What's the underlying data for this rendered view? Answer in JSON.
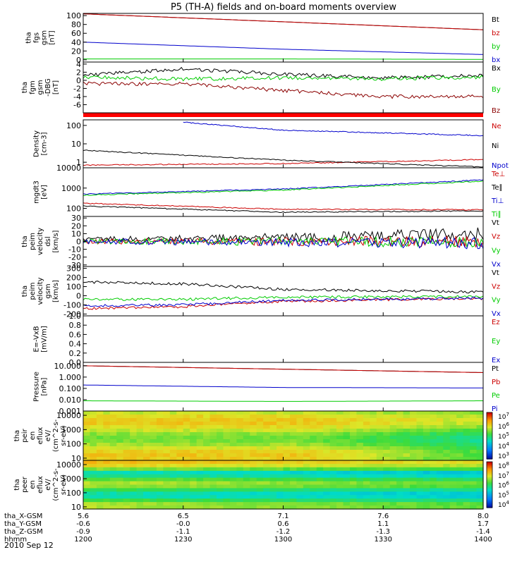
{
  "title": "P5 (TH-A) fields and on-board moments overview",
  "date": "2010 Sep 12",
  "colors": {
    "black": "#000000",
    "red": "#cc0000",
    "green": "#00cc00",
    "blue": "#0000cc",
    "darkred": "#8b0000"
  },
  "ephemeris": {
    "rows": [
      {
        "label": "tha_X-GSM",
        "values": [
          "5.6",
          "6.5",
          "7.1",
          "7.6",
          "8.0"
        ]
      },
      {
        "label": "tha_Y-GSM",
        "values": [
          "-0.6",
          "-0.0",
          "0.6",
          "1.1",
          "1.7"
        ]
      },
      {
        "label": "tha_Z-GSM",
        "values": [
          "-0.9",
          "-1.1",
          "-1.2",
          "-1.3",
          "-1.4"
        ]
      },
      {
        "label": "hhmm",
        "values": [
          "1200",
          "1230",
          "1300",
          "1330",
          "1400"
        ]
      }
    ]
  },
  "chart_data": [
    {
      "type": "line",
      "id": "fgs",
      "ylabel_lines": [
        "tha",
        "fgs",
        "gsm",
        "[nT]"
      ],
      "ylim": [
        -5,
        105
      ],
      "yticks": [
        "100",
        "80",
        "60",
        "40",
        "20",
        "0"
      ],
      "time_range": [
        "1200",
        "1400"
      ],
      "series": [
        {
          "name": "Bt",
          "color": "#000000",
          "x": [
            "1200",
            "1300",
            "1400"
          ],
          "values": [
            104,
            86,
            68
          ]
        },
        {
          "name": "bz",
          "color": "#cc0000",
          "x": [
            "1200",
            "1300",
            "1400"
          ],
          "values": [
            104,
            86,
            68
          ]
        },
        {
          "name": "by",
          "color": "#00cc00",
          "x": [
            "1200",
            "1300",
            "1400"
          ],
          "values": [
            2,
            2,
            1
          ]
        },
        {
          "name": "bx",
          "color": "#0000cc",
          "x": [
            "1200",
            "1300",
            "1400"
          ],
          "values": [
            40,
            24,
            12
          ]
        }
      ]
    },
    {
      "type": "line",
      "id": "fgm-dbg",
      "ylabel_lines": [
        "tha",
        "fgm",
        "gsm",
        "-DBG",
        "[nT]"
      ],
      "ylim": [
        -8,
        4.5
      ],
      "yticks": [
        "4",
        "2",
        "0",
        "-2",
        "-4",
        "-6"
      ],
      "series": [
        {
          "name": "Bx",
          "color": "#000000",
          "x": [
            "1200",
            "1230",
            "1300",
            "1330",
            "1400"
          ],
          "values": [
            1.2,
            2.8,
            1.5,
            0.6,
            1.2
          ]
        },
        {
          "name": "By",
          "color": "#00cc00",
          "x": [
            "1200",
            "1230",
            "1300",
            "1330",
            "1400"
          ],
          "values": [
            0.8,
            0.3,
            0.6,
            0.4,
            0.8
          ]
        },
        {
          "name": "Bz",
          "color": "#8b0000",
          "x": [
            "1200",
            "1230",
            "1300",
            "1330",
            "1400"
          ],
          "values": [
            -0.8,
            -0.9,
            -2.5,
            -4,
            -4
          ]
        }
      ]
    },
    {
      "type": "line",
      "id": "density",
      "scale": "log",
      "ylabel_lines": [
        "Density",
        "[cm-3]"
      ],
      "ylim": [
        0.5,
        200
      ],
      "yticks": [
        "100",
        "10",
        "1"
      ],
      "series": [
        {
          "name": "Ne",
          "color": "#cc0000",
          "x": [
            "1200",
            "1300",
            "1400"
          ],
          "values": [
            0.7,
            0.85,
            1.4
          ]
        },
        {
          "name": "Ni",
          "color": "#000000",
          "x": [
            "1200",
            "1300",
            "1400"
          ],
          "values": [
            4.5,
            1.3,
            0.55
          ]
        },
        {
          "name": "Npot",
          "color": "#0000cc",
          "x": [
            "1230",
            "1300",
            "1400"
          ],
          "values": [
            150,
            55,
            28
          ]
        }
      ]
    },
    {
      "type": "line",
      "id": "temperature",
      "scale": "log",
      "ylabel_lines": [
        "mgdt3",
        "[eV]"
      ],
      "ylim": [
        40,
        10000
      ],
      "yticks": [
        "10000",
        "1000",
        "100"
      ],
      "series": [
        {
          "name": "Te⊥",
          "color": "#cc0000",
          "x": [
            "1200",
            "1300",
            "1400"
          ],
          "values": [
            180,
            90,
            85
          ]
        },
        {
          "name": "Te∥",
          "color": "#000000",
          "x": [
            "1200",
            "1300",
            "1400"
          ],
          "values": [
            130,
            65,
            75
          ]
        },
        {
          "name": "Ti⊥",
          "color": "#0000cc",
          "x": [
            "1200",
            "1300",
            "1400"
          ],
          "values": [
            500,
            900,
            2500
          ]
        },
        {
          "name": "Ti∥",
          "color": "#00cc00",
          "x": [
            "1200",
            "1300",
            "1400"
          ],
          "values": [
            450,
            800,
            2200
          ]
        }
      ]
    },
    {
      "type": "line",
      "id": "peim-dsl",
      "ylabel_lines": [
        "tha",
        "peim",
        "velocity",
        "dsl",
        "[km/s]"
      ],
      "ylim": [
        -32,
        32
      ],
      "yticks": [
        "30",
        "20",
        "10",
        "0",
        "-10",
        "-20",
        "-30"
      ],
      "series": [
        {
          "name": "Vt",
          "color": "#000000",
          "x": [
            "1200",
            "1300",
            "1400"
          ],
          "values": [
            3,
            5,
            10
          ]
        },
        {
          "name": "Vz",
          "color": "#cc0000",
          "x": [
            "1200",
            "1300",
            "1400"
          ],
          "values": [
            0,
            0,
            0
          ]
        },
        {
          "name": "Vy",
          "color": "#00cc00",
          "x": [
            "1200",
            "1300",
            "1400"
          ],
          "values": [
            0,
            0,
            0
          ]
        },
        {
          "name": "Vx",
          "color": "#0000cc",
          "x": [
            "1200",
            "1300",
            "1400"
          ],
          "values": [
            0,
            -1,
            -2
          ]
        }
      ]
    },
    {
      "type": "line",
      "id": "peim-gsm",
      "ylabel_lines": [
        "tha",
        "peim",
        "velocity",
        "gsm",
        "[km/s]"
      ],
      "ylim": [
        -220,
        320
      ],
      "yticks": [
        "300",
        "200",
        "100",
        "0",
        "-100",
        "-200"
      ],
      "series": [
        {
          "name": "Vt",
          "color": "#000000",
          "x": [
            "1200",
            "1230",
            "1300",
            "1400"
          ],
          "values": [
            150,
            130,
            70,
            40
          ]
        },
        {
          "name": "Vz",
          "color": "#cc0000",
          "x": [
            "1200",
            "1230",
            "1300",
            "1400"
          ],
          "values": [
            -140,
            -120,
            -60,
            -30
          ]
        },
        {
          "name": "Vy",
          "color": "#00cc00",
          "x": [
            "1200",
            "1230",
            "1300",
            "1400"
          ],
          "values": [
            -40,
            -40,
            -15,
            -10
          ]
        },
        {
          "name": "Vx",
          "color": "#0000cc",
          "x": [
            "1200",
            "1230",
            "1300",
            "1400"
          ],
          "values": [
            -110,
            -100,
            -50,
            -25
          ]
        }
      ]
    },
    {
      "type": "line",
      "id": "efield",
      "ylabel_lines": [
        "E=-VxB",
        "[mV/m]"
      ],
      "ylim": [
        0,
        1
      ],
      "yticks": [
        "1.0",
        "0.8",
        "0.6",
        "0.4",
        "0.2",
        "0.0"
      ],
      "series": [
        {
          "name": "Ez",
          "color": "#cc0000",
          "values": []
        },
        {
          "name": "Ey",
          "color": "#00cc00",
          "values": []
        },
        {
          "name": "Ex",
          "color": "#0000cc",
          "values": []
        }
      ]
    },
    {
      "type": "line",
      "id": "pressure",
      "scale": "log",
      "ylabel_lines": [
        "Pressure",
        "[nPa]"
      ],
      "ylim": [
        0.001,
        20
      ],
      "yticks": [
        "10.000",
        "1.000",
        "0.100",
        "0.010",
        "0.001"
      ],
      "series": [
        {
          "name": "Pt",
          "color": "#000000",
          "x": [
            "1200",
            "1300",
            "1400"
          ],
          "values": [
            10,
            5,
            2.5
          ]
        },
        {
          "name": "Pb",
          "color": "#cc0000",
          "x": [
            "1200",
            "1300",
            "1400"
          ],
          "values": [
            10,
            5,
            2.5
          ]
        },
        {
          "name": "Pe",
          "color": "#00cc00",
          "x": [
            "1200",
            "1300",
            "1400"
          ],
          "values": [
            0.008,
            0.007,
            0.008
          ]
        },
        {
          "name": "Pi",
          "color": "#0000cc",
          "x": [
            "1200",
            "1300",
            "1400"
          ],
          "values": [
            0.2,
            0.12,
            0.11
          ]
        }
      ]
    },
    {
      "type": "heatmap",
      "id": "peir",
      "ylabel_lines": [
        "tha",
        "peir",
        "en",
        "eflux",
        "eV/",
        "(cm^2-s-",
        "sr-eV)"
      ],
      "yscale": "log",
      "ylim": [
        7,
        20000
      ],
      "yticks": [
        "10000",
        "1000",
        "100",
        "10"
      ],
      "colorbar_ticks": [
        "10^7",
        "10^6",
        "10^5",
        "10^4",
        "10^3"
      ]
    },
    {
      "type": "heatmap",
      "id": "peer",
      "ylabel_lines": [
        "tha",
        "peer",
        "en",
        "eflux",
        "eV/",
        "(cm^2-s-",
        "sr-eV)"
      ],
      "yscale": "log",
      "ylim": [
        7,
        20000
      ],
      "yticks": [
        "10000",
        "1000",
        "100",
        "10"
      ],
      "colorbar_ticks": [
        "10^8",
        "10^7",
        "10^6",
        "10^5",
        "10^4"
      ]
    }
  ]
}
